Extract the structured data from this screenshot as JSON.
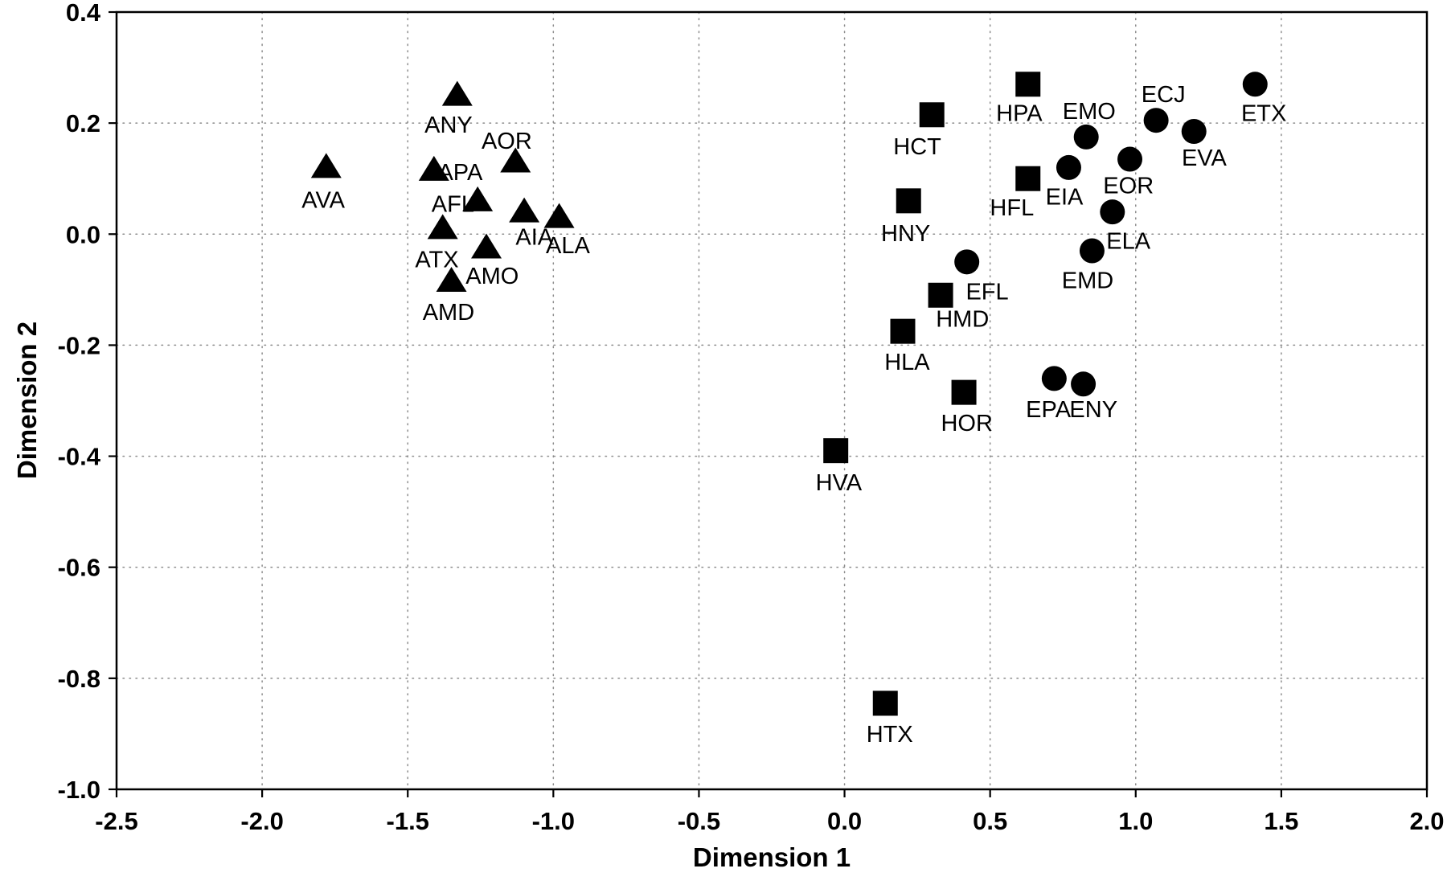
{
  "figure": {
    "background": "#ffffff",
    "frame_color": "#000000",
    "marker_color": "#000000",
    "grid_color": "#8c8c8c"
  },
  "chart_data": {
    "type": "scatter",
    "xlabel": "Dimension 1",
    "ylabel": "Dimension 2",
    "xlim": [
      -2.5,
      2.0
    ],
    "ylim": [
      -1.0,
      0.4
    ],
    "grid": true,
    "grid_style": "dotted",
    "legend": "none",
    "xticks": [
      {
        "v": -2.5,
        "label": "-2.5"
      },
      {
        "v": -2.0,
        "label": "-2.0"
      },
      {
        "v": -1.5,
        "label": "-1.5"
      },
      {
        "v": -1.0,
        "label": "-1.0"
      },
      {
        "v": -0.5,
        "label": "-0.5"
      },
      {
        "v": 0.0,
        "label": "0.0"
      },
      {
        "v": 0.5,
        "label": "0.5"
      },
      {
        "v": 1.0,
        "label": "1.0"
      },
      {
        "v": 1.5,
        "label": "1.5"
      },
      {
        "v": 2.0,
        "label": "2.0"
      }
    ],
    "yticks": [
      {
        "v": 0.4,
        "label": "0.4"
      },
      {
        "v": 0.2,
        "label": "0.2"
      },
      {
        "v": 0.0,
        "label": "0.0"
      },
      {
        "v": -0.2,
        "label": "-0.2"
      },
      {
        "v": -0.4,
        "label": "-0.4"
      },
      {
        "v": -0.6,
        "label": "-0.6"
      },
      {
        "v": -0.8,
        "label": "-0.8"
      },
      {
        "v": -1.0,
        "label": "-1.0"
      }
    ],
    "series": [
      {
        "name": "triangle-markers",
        "marker": "triangle",
        "points": [
          {
            "label": "AVA",
            "x": -1.78,
            "y": 0.12,
            "lx": -1.79,
            "ly": 0.062
          },
          {
            "label": "ANY",
            "x": -1.33,
            "y": 0.25,
            "lx": -1.36,
            "ly": 0.197
          },
          {
            "label": "AOR",
            "x": -1.13,
            "y": 0.13,
            "lx": -1.16,
            "ly": 0.168
          },
          {
            "label": "APA",
            "x": -1.41,
            "y": 0.115,
            "lx": -1.32,
            "ly": 0.112
          },
          {
            "label": "AFL",
            "x": -1.26,
            "y": 0.06,
            "lx": -1.345,
            "ly": 0.055
          },
          {
            "label": "AIA",
            "x": -1.1,
            "y": 0.04,
            "lx": -1.065,
            "ly": -0.005
          },
          {
            "label": "ALA",
            "x": -0.98,
            "y": 0.03,
            "lx": -0.95,
            "ly": -0.02
          },
          {
            "label": "ATX",
            "x": -1.38,
            "y": 0.01,
            "lx": -1.4,
            "ly": -0.045
          },
          {
            "label": "AMO",
            "x": -1.23,
            "y": -0.025,
            "lx": -1.21,
            "ly": -0.075
          },
          {
            "label": "AMD",
            "x": -1.35,
            "y": -0.085,
            "lx": -1.36,
            "ly": -0.14
          }
        ]
      },
      {
        "name": "square-markers",
        "marker": "square",
        "points": [
          {
            "label": "HCT",
            "x": 0.3,
            "y": 0.215,
            "lx": 0.25,
            "ly": 0.158
          },
          {
            "label": "HPA",
            "x": 0.63,
            "y": 0.27,
            "lx": 0.6,
            "ly": 0.218
          },
          {
            "label": "HNY",
            "x": 0.22,
            "y": 0.06,
            "lx": 0.21,
            "ly": 0.002
          },
          {
            "label": "HFL",
            "x": 0.63,
            "y": 0.1,
            "lx": 0.575,
            "ly": 0.048
          },
          {
            "label": "HMD",
            "x": 0.33,
            "y": -0.11,
            "lx": 0.405,
            "ly": -0.152
          },
          {
            "label": "HLA",
            "x": 0.2,
            "y": -0.175,
            "lx": 0.215,
            "ly": -0.23
          },
          {
            "label": "HOR",
            "x": 0.41,
            "y": -0.285,
            "lx": 0.42,
            "ly": -0.34
          },
          {
            "label": "HVA",
            "x": -0.03,
            "y": -0.39,
            "lx": -0.02,
            "ly": -0.447
          },
          {
            "label": "HTX",
            "x": 0.14,
            "y": -0.845,
            "lx": 0.155,
            "ly": -0.9
          }
        ]
      },
      {
        "name": "circle-markers",
        "marker": "circle",
        "points": [
          {
            "label": "EMO",
            "x": 0.83,
            "y": 0.175,
            "lx": 0.84,
            "ly": 0.222
          },
          {
            "label": "ECJ",
            "x": 1.07,
            "y": 0.205,
            "lx": 1.095,
            "ly": 0.252
          },
          {
            "label": "ETX",
            "x": 1.41,
            "y": 0.27,
            "lx": 1.44,
            "ly": 0.218
          },
          {
            "label": "EVA",
            "x": 1.2,
            "y": 0.185,
            "lx": 1.235,
            "ly": 0.138
          },
          {
            "label": "EOR",
            "x": 0.98,
            "y": 0.135,
            "lx": 0.975,
            "ly": 0.088
          },
          {
            "label": "EIA",
            "x": 0.77,
            "y": 0.12,
            "lx": 0.755,
            "ly": 0.068
          },
          {
            "label": "ELA",
            "x": 0.92,
            "y": 0.04,
            "lx": 0.975,
            "ly": -0.012
          },
          {
            "label": "EMD",
            "x": 0.85,
            "y": -0.03,
            "lx": 0.835,
            "ly": -0.083
          },
          {
            "label": "EFL",
            "x": 0.42,
            "y": -0.05,
            "lx": 0.49,
            "ly": -0.103
          },
          {
            "label": "EPA",
            "x": 0.72,
            "y": -0.26,
            "lx": 0.7,
            "ly": -0.315
          },
          {
            "label": "ENY",
            "x": 0.82,
            "y": -0.27,
            "lx": 0.855,
            "ly": -0.315
          }
        ]
      }
    ]
  }
}
